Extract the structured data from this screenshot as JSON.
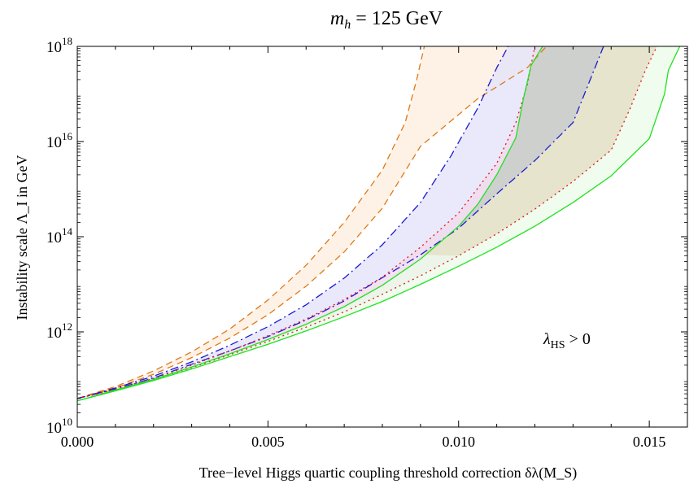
{
  "title": {
    "prefix": "m",
    "sub": "h",
    "suffix": " = 125 GeV"
  },
  "annotation": {
    "lambda": "λ",
    "sub": "HS",
    "rest": " > 0"
  },
  "chart_data": {
    "type": "area",
    "title": "m_h = 125 GeV",
    "xlabel": "Tree−level Higgs quartic coupling threshold correction δλ(M_S)",
    "ylabel": "Instability scale Λ_I in GeV",
    "xlim": [
      0.0,
      0.016
    ],
    "ylim_log10": [
      10,
      18
    ],
    "y_scale": "log",
    "grid": false,
    "x_ticks": [
      "0.000",
      "0.005",
      "0.010",
      "0.015"
    ],
    "x_tick_values": [
      0.0,
      0.005,
      0.01,
      0.015
    ],
    "y_ticks_base": "10",
    "y_ticks_exp": [
      "10",
      "12",
      "14",
      "16",
      "18"
    ],
    "bands": [
      {
        "color": "#e07818",
        "fill": "#fdeedd",
        "dash": "8,5",
        "lower": [
          [
            0,
            10.6
          ],
          [
            0.001,
            10.82
          ],
          [
            0.002,
            11.11
          ],
          [
            0.003,
            11.46
          ],
          [
            0.004,
            11.87
          ],
          [
            0.005,
            12.36
          ],
          [
            0.006,
            12.96
          ],
          [
            0.007,
            13.68
          ],
          [
            0.008,
            14.6
          ],
          [
            0.009,
            15.9
          ],
          [
            0.0105,
            16.9
          ],
          [
            0.0118,
            17.55
          ],
          [
            0.0123,
            18.0
          ]
        ],
        "upper": [
          [
            0,
            10.6
          ],
          [
            0.001,
            10.85
          ],
          [
            0.002,
            11.18
          ],
          [
            0.003,
            11.58
          ],
          [
            0.004,
            12.06
          ],
          [
            0.005,
            12.67
          ],
          [
            0.006,
            13.4
          ],
          [
            0.007,
            14.3
          ],
          [
            0.008,
            15.4
          ],
          [
            0.0086,
            16.4
          ],
          [
            0.0089,
            17.3
          ],
          [
            0.0091,
            18.0
          ]
        ]
      },
      {
        "color": "#1a1ad0",
        "fill": "#e2e2fa",
        "dash": "10,4,2,4",
        "lower": [
          [
            0,
            10.6
          ],
          [
            0.001,
            10.8
          ],
          [
            0.002,
            11.03
          ],
          [
            0.003,
            11.32
          ],
          [
            0.004,
            11.6
          ],
          [
            0.005,
            11.9
          ],
          [
            0.006,
            12.25
          ],
          [
            0.007,
            12.65
          ],
          [
            0.008,
            13.14
          ],
          [
            0.009,
            13.62
          ],
          [
            0.01,
            14.18
          ],
          [
            0.011,
            14.9
          ],
          [
            0.012,
            15.6
          ],
          [
            0.013,
            16.4
          ],
          [
            0.0138,
            18.0
          ]
        ],
        "upper": [
          [
            0,
            10.6
          ],
          [
            0.001,
            10.82
          ],
          [
            0.002,
            11.07
          ],
          [
            0.003,
            11.37
          ],
          [
            0.004,
            11.72
          ],
          [
            0.005,
            12.11
          ],
          [
            0.006,
            12.57
          ],
          [
            0.007,
            13.13
          ],
          [
            0.008,
            13.83
          ],
          [
            0.009,
            14.72
          ],
          [
            0.0098,
            15.7
          ],
          [
            0.0105,
            16.7
          ],
          [
            0.011,
            17.55
          ],
          [
            0.0113,
            18.0
          ]
        ]
      },
      {
        "color": "#e01818",
        "fill": "#f2d8ec",
        "dash": "2,4",
        "lower": [
          [
            0,
            10.6
          ],
          [
            0.001,
            10.78
          ],
          [
            0.002,
            11.0
          ],
          [
            0.003,
            11.25
          ],
          [
            0.004,
            11.52
          ],
          [
            0.005,
            11.8
          ],
          [
            0.006,
            12.1
          ],
          [
            0.007,
            12.42
          ],
          [
            0.008,
            12.79
          ],
          [
            0.009,
            13.18
          ],
          [
            0.01,
            13.6
          ],
          [
            0.011,
            14.06
          ],
          [
            0.012,
            14.58
          ],
          [
            0.013,
            15.16
          ],
          [
            0.014,
            15.82
          ],
          [
            0.0145,
            16.7
          ],
          [
            0.0149,
            17.5
          ],
          [
            0.0152,
            18.0
          ]
        ],
        "upper": [
          [
            0,
            10.6
          ],
          [
            0.001,
            10.8
          ],
          [
            0.002,
            11.02
          ],
          [
            0.003,
            11.3
          ],
          [
            0.004,
            11.6
          ],
          [
            0.005,
            11.92
          ],
          [
            0.006,
            12.27
          ],
          [
            0.007,
            12.68
          ],
          [
            0.008,
            13.15
          ],
          [
            0.009,
            13.78
          ],
          [
            0.01,
            14.5
          ],
          [
            0.011,
            15.54
          ],
          [
            0.0115,
            16.4
          ],
          [
            0.0118,
            17.2
          ],
          [
            0.0119,
            17.6
          ],
          [
            0.012,
            18.0
          ]
        ]
      },
      {
        "color": "#22e022",
        "fill": "#eafbe8",
        "dash": "",
        "lower": [
          [
            0,
            10.55
          ],
          [
            0.001,
            10.76
          ],
          [
            0.002,
            10.98
          ],
          [
            0.003,
            11.22
          ],
          [
            0.004,
            11.48
          ],
          [
            0.005,
            11.74
          ],
          [
            0.006,
            12.02
          ],
          [
            0.007,
            12.32
          ],
          [
            0.008,
            12.64
          ],
          [
            0.009,
            13.0
          ],
          [
            0.01,
            13.38
          ],
          [
            0.011,
            13.78
          ],
          [
            0.012,
            14.22
          ],
          [
            0.013,
            14.72
          ],
          [
            0.014,
            15.28
          ],
          [
            0.015,
            16.06
          ],
          [
            0.0154,
            17.0
          ],
          [
            0.0155,
            17.5
          ],
          [
            0.0158,
            18.0
          ]
        ],
        "upper": [
          [
            0,
            10.55
          ],
          [
            0.001,
            10.78
          ],
          [
            0.002,
            11.0
          ],
          [
            0.003,
            11.26
          ],
          [
            0.004,
            11.54
          ],
          [
            0.005,
            11.84
          ],
          [
            0.006,
            12.16
          ],
          [
            0.007,
            12.53
          ],
          [
            0.008,
            12.98
          ],
          [
            0.009,
            13.53
          ],
          [
            0.01,
            14.22
          ],
          [
            0.0105,
            14.68
          ],
          [
            0.011,
            15.3
          ],
          [
            0.0115,
            16.08
          ],
          [
            0.0117,
            16.9
          ],
          [
            0.0119,
            17.6
          ],
          [
            0.0122,
            18.0
          ]
        ]
      }
    ]
  },
  "colors": {
    "gray_overlap": "#c9c9c9",
    "olive_overlap": "#e4e0c4"
  }
}
